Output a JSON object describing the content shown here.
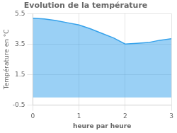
{
  "chart_data": {
    "type": "area",
    "title": "Evolution de la température",
    "xlabel": "heure par heure",
    "ylabel": "Température en °C",
    "x": [
      0,
      0.25,
      0.5,
      0.75,
      1.0,
      1.25,
      1.5,
      1.75,
      2.0,
      2.25,
      2.5,
      2.75,
      3.0
    ],
    "values": [
      5.2,
      5.15,
      5.05,
      4.9,
      4.75,
      4.5,
      4.2,
      3.9,
      3.5,
      3.55,
      3.6,
      3.75,
      3.85
    ],
    "xlim": [
      0,
      3
    ],
    "xticks": [
      0,
      1,
      2,
      3
    ],
    "ylim": [
      -0.5,
      5.5
    ],
    "yticks": [
      -0.5,
      1.5,
      3.5,
      5.5
    ],
    "grid": true
  }
}
